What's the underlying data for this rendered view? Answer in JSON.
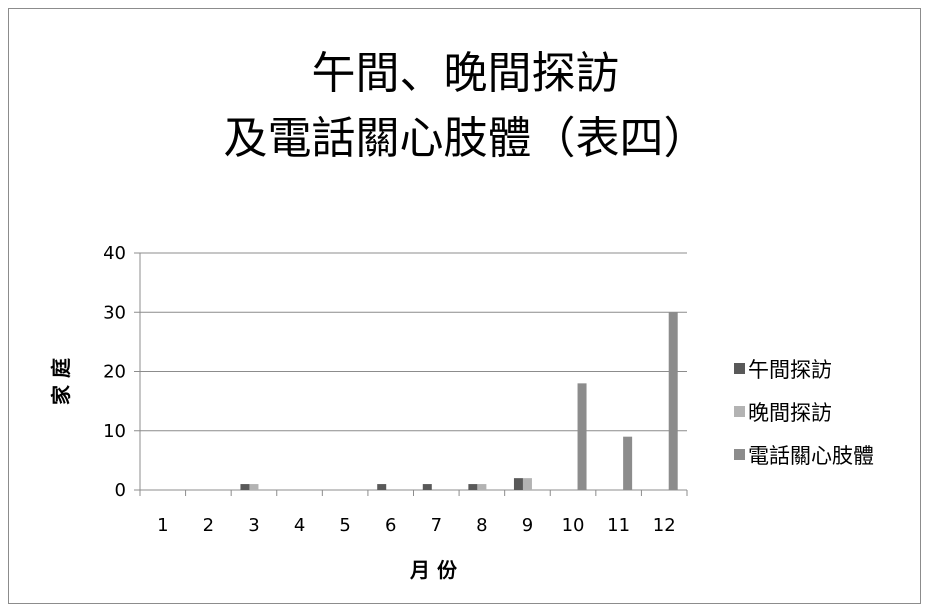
{
  "chart_data": {
    "type": "bar",
    "title_lines": [
      "午間、晚間探訪",
      "及電話關心肢體（表四）"
    ],
    "xlabel": "月 份",
    "ylabel": "家 庭",
    "categories": [
      "1",
      "2",
      "3",
      "4",
      "5",
      "6",
      "7",
      "8",
      "9",
      "10",
      "11",
      "12"
    ],
    "ylim": [
      0,
      40
    ],
    "yticks": [
      0,
      10,
      20,
      30,
      40
    ],
    "grid": true,
    "legend_position": "right",
    "series": [
      {
        "name": "午間探訪",
        "color": "#595959",
        "values": [
          0,
          0,
          1,
          0,
          0,
          1,
          1,
          1,
          2,
          0,
          0,
          0
        ]
      },
      {
        "name": "晚間探訪",
        "color": "#b3b3b3",
        "values": [
          0,
          0,
          1,
          0,
          0,
          0,
          0,
          1,
          2,
          0,
          0,
          0
        ]
      },
      {
        "name": "電話關心肢體",
        "color": "#8c8c8c",
        "values": [
          0,
          0,
          0,
          0,
          0,
          0,
          0,
          0,
          0,
          18,
          9,
          30
        ]
      }
    ]
  }
}
